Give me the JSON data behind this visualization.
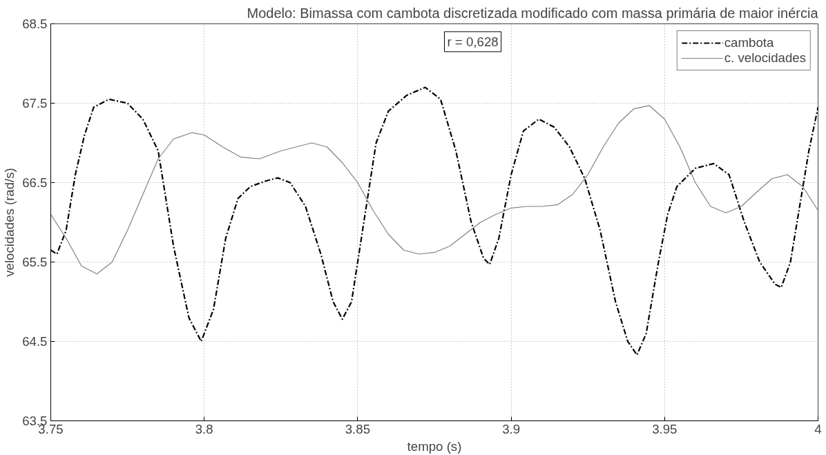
{
  "chart_data": {
    "type": "line",
    "title": "Modelo: Bimassa com cambota discretizada modificado com massa primária de maior inércia",
    "xlabel": "tempo (s)",
    "ylabel": "velocidades (rad/s)",
    "annotations": [
      "r = 0,628"
    ],
    "xlim": [
      3.75,
      4
    ],
    "xticks": [
      3.75,
      3.8,
      3.85,
      3.9,
      3.95,
      4
    ],
    "ylim": [
      63.5,
      68.5
    ],
    "yticks": [
      63.5,
      64.5,
      65.5,
      66.5,
      67.5,
      68.5
    ],
    "grid": true,
    "legend": "top right",
    "marker": "none",
    "series": [
      {
        "name": "cambota",
        "color": "#000000",
        "line_style": "dashdot",
        "x": [
          3.75,
          3.752,
          3.755,
          3.758,
          3.761,
          3.764,
          3.769,
          3.775,
          3.78,
          3.785,
          3.79,
          3.795,
          3.799,
          3.803,
          3.807,
          3.811,
          3.815,
          3.82,
          3.824,
          3.828,
          3.833,
          3.838,
          3.842,
          3.845,
          3.848,
          3.852,
          3.856,
          3.86,
          3.866,
          3.872,
          3.877,
          3.882,
          3.887,
          3.891,
          3.893,
          3.896,
          3.9,
          3.904,
          3.909,
          3.914,
          3.919,
          3.924,
          3.929,
          3.934,
          3.938,
          3.941,
          3.944,
          3.948,
          3.951,
          3.954,
          3.96,
          3.966,
          3.971,
          3.976,
          3.981,
          3.986,
          3.988,
          3.991,
          3.994,
          3.997,
          4.0
        ],
        "values": [
          65.65,
          65.6,
          65.9,
          66.6,
          67.1,
          67.45,
          67.55,
          67.5,
          67.3,
          66.9,
          65.7,
          64.8,
          64.5,
          64.9,
          65.8,
          66.3,
          66.45,
          66.52,
          66.56,
          66.5,
          66.2,
          65.6,
          65.0,
          64.78,
          65.0,
          66.0,
          67.0,
          67.4,
          67.6,
          67.7,
          67.55,
          66.9,
          66.0,
          65.55,
          65.47,
          65.8,
          66.6,
          67.15,
          67.3,
          67.2,
          66.95,
          66.55,
          65.9,
          65.0,
          64.5,
          64.33,
          64.6,
          65.5,
          66.1,
          66.45,
          66.68,
          66.74,
          66.6,
          66.0,
          65.5,
          65.22,
          65.18,
          65.5,
          66.2,
          66.9,
          67.45
        ]
      },
      {
        "name": "c. velocidades",
        "color": "#808080",
        "line_style": "solid",
        "x": [
          3.75,
          3.755,
          3.76,
          3.765,
          3.77,
          3.775,
          3.78,
          3.785,
          3.79,
          3.796,
          3.8,
          3.806,
          3.812,
          3.818,
          3.825,
          3.835,
          3.84,
          3.845,
          3.85,
          3.855,
          3.86,
          3.865,
          3.87,
          3.875,
          3.88,
          3.885,
          3.89,
          3.895,
          3.9,
          3.905,
          3.91,
          3.915,
          3.92,
          3.925,
          3.93,
          3.935,
          3.94,
          3.945,
          3.95,
          3.955,
          3.96,
          3.965,
          3.97,
          3.975,
          3.98,
          3.985,
          3.99,
          3.995,
          4.0
        ],
        "values": [
          66.1,
          65.8,
          65.45,
          65.35,
          65.5,
          65.9,
          66.35,
          66.8,
          67.05,
          67.13,
          67.1,
          66.95,
          66.82,
          66.8,
          66.9,
          67.0,
          66.95,
          66.75,
          66.5,
          66.15,
          65.85,
          65.65,
          65.6,
          65.62,
          65.7,
          65.85,
          66.0,
          66.1,
          66.18,
          66.2,
          66.2,
          66.22,
          66.35,
          66.6,
          66.95,
          67.25,
          67.43,
          67.47,
          67.3,
          66.95,
          66.5,
          66.2,
          66.12,
          66.2,
          66.38,
          66.55,
          66.6,
          66.45,
          66.15
        ]
      }
    ]
  }
}
